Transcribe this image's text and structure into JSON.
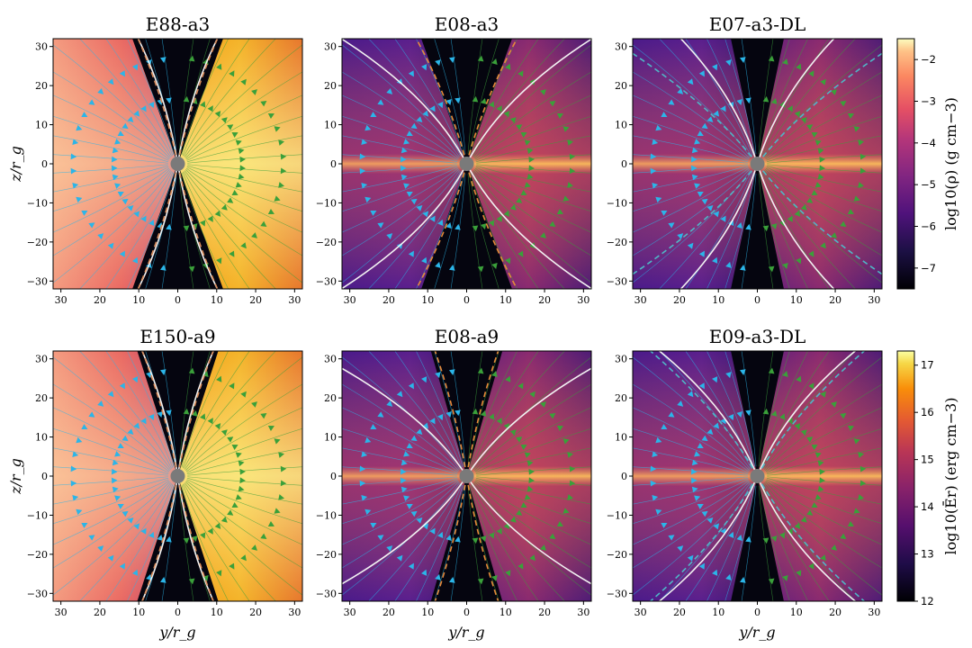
{
  "chart_data": [
    {
      "type": "heatmap",
      "title": "E88-a3",
      "field": "density",
      "xlabel": "",
      "ylabel": "z/r_g",
      "xlim": [
        -32,
        32
      ],
      "ylim": [
        -32,
        32
      ],
      "xticks": [
        -30,
        -20,
        -10,
        0,
        10,
        20,
        30
      ],
      "xtick_labels": [
        "30",
        "20",
        "10",
        "0",
        "10",
        "20",
        "30"
      ],
      "yticks": [
        30,
        20,
        10,
        0,
        -10,
        -20,
        -30
      ],
      "ytick_labels": [
        "30",
        "20",
        "10",
        "0",
        "−10",
        "−20",
        "−30"
      ],
      "style": "hot",
      "funnel_half_angle_deg": 20,
      "white_contour_angle_deg": 22,
      "dashed_contour_angle_deg": 21,
      "dashed_color": "#d98b5a"
    },
    {
      "type": "heatmap",
      "title": "E08-a3",
      "field": "density",
      "xlabel": "",
      "ylabel": "",
      "xlim": [
        -32,
        32
      ],
      "ylim": [
        -32,
        32
      ],
      "xticks": [
        -30,
        -20,
        -10,
        0,
        10,
        20,
        30
      ],
      "xtick_labels": [
        "30",
        "20",
        "10",
        "0",
        "10",
        "20",
        "30"
      ],
      "yticks": [
        30,
        20,
        10,
        0,
        -10,
        -20,
        -30
      ],
      "ytick_labels": [
        "30",
        "20",
        "10",
        "0",
        "−10",
        "−20",
        "−30"
      ],
      "style": "cool",
      "funnel_half_angle_deg": 20,
      "white_contour_angle_deg": 52,
      "dashed_contour_angle_deg": 26,
      "dashed_color": "#e8893a"
    },
    {
      "type": "heatmap",
      "title": "E07-a3-DL",
      "field": "density",
      "xlabel": "",
      "ylabel": "",
      "xlim": [
        -32,
        32
      ],
      "ylim": [
        -32,
        32
      ],
      "xticks": [
        -30,
        -20,
        -10,
        0,
        10,
        20,
        30
      ],
      "xtick_labels": [
        "30",
        "20",
        "10",
        "0",
        "10",
        "20",
        "30"
      ],
      "yticks": [
        30,
        20,
        10,
        0,
        -10,
        -20,
        -30
      ],
      "ytick_labels": [
        "30",
        "20",
        "10",
        "0",
        "−10",
        "−20",
        "−30"
      ],
      "style": "cool",
      "funnel_half_angle_deg": 12,
      "white_contour_angle_deg": 38,
      "dashed_contour_angle_deg": 55,
      "dashed_color": "#4fb7c6"
    },
    {
      "type": "heatmap",
      "title": "E150-a9",
      "field": "radiation energy density",
      "xlabel": "y/r_g",
      "ylabel": "z/r_g",
      "xlim": [
        -32,
        32
      ],
      "ylim": [
        -32,
        32
      ],
      "xticks": [
        -30,
        -20,
        -10,
        0,
        10,
        20,
        30
      ],
      "xtick_labels": [
        "30",
        "20",
        "10",
        "0",
        "10",
        "20",
        "30"
      ],
      "yticks": [
        30,
        20,
        10,
        0,
        -10,
        -20,
        -30
      ],
      "ytick_labels": [
        "30",
        "20",
        "10",
        "0",
        "−10",
        "−20",
        "−30"
      ],
      "style": "hot",
      "funnel_half_angle_deg": 18,
      "white_contour_angle_deg": 20,
      "dashed_contour_angle_deg": 19,
      "dashed_color": "#d98b5a"
    },
    {
      "type": "heatmap",
      "title": "E08-a9",
      "field": "radiation energy density",
      "xlabel": "y/r_g",
      "ylabel": "",
      "xlim": [
        -32,
        32
      ],
      "ylim": [
        -32,
        32
      ],
      "xticks": [
        -30,
        -20,
        -10,
        0,
        10,
        20,
        30
      ],
      "xtick_labels": [
        "30",
        "20",
        "10",
        "0",
        "10",
        "20",
        "30"
      ],
      "yticks": [
        30,
        20,
        10,
        0,
        -10,
        -20,
        -30
      ],
      "ytick_labels": [
        "30",
        "20",
        "10",
        "0",
        "−10",
        "−20",
        "−30"
      ],
      "style": "cool",
      "funnel_half_angle_deg": 16,
      "white_contour_angle_deg": 58,
      "dashed_contour_angle_deg": 17,
      "dashed_color": "#e8893a"
    },
    {
      "type": "heatmap",
      "title": "E09-a3-DL",
      "field": "radiation energy density",
      "xlabel": "y/r_g",
      "ylabel": "",
      "xlim": [
        -32,
        32
      ],
      "ylim": [
        -32,
        32
      ],
      "xticks": [
        -30,
        -20,
        -10,
        0,
        10,
        20,
        30
      ],
      "xtick_labels": [
        "30",
        "20",
        "10",
        "0",
        "10",
        "20",
        "30"
      ],
      "yticks": [
        30,
        20,
        10,
        0,
        -10,
        -20,
        -30
      ],
      "ytick_labels": [
        "30",
        "20",
        "10",
        "0",
        "−10",
        "−20",
        "−30"
      ],
      "style": "cool",
      "funnel_half_angle_deg": 12,
      "white_contour_angle_deg": 45,
      "dashed_contour_angle_deg": 46,
      "dashed_color": "#4fb7c6"
    }
  ],
  "colorbars": [
    {
      "label": "log10(ρ) (g cm−3)",
      "range": [
        -7.5,
        -1.5
      ],
      "ticks": [
        -2,
        -3,
        -4,
        -5,
        -6,
        -7
      ],
      "tick_labels": [
        "−2",
        "−3",
        "−4",
        "−5",
        "−6",
        "−7"
      ],
      "colormap": "magma"
    },
    {
      "label": "log10(Ēr) (erg cm−3)",
      "range": [
        12,
        17.3
      ],
      "ticks": [
        17,
        16,
        15,
        14,
        13,
        12
      ],
      "tick_labels": [
        "17",
        "16",
        "15",
        "14",
        "13",
        "12"
      ],
      "colormap": "inferno"
    }
  ],
  "colors": {
    "inflow_streamline": "#2bb5e8",
    "outflow_streamline": "#3aa03a",
    "photosphere": "#f2f2f2",
    "black_hole": "#7a7a7a"
  }
}
